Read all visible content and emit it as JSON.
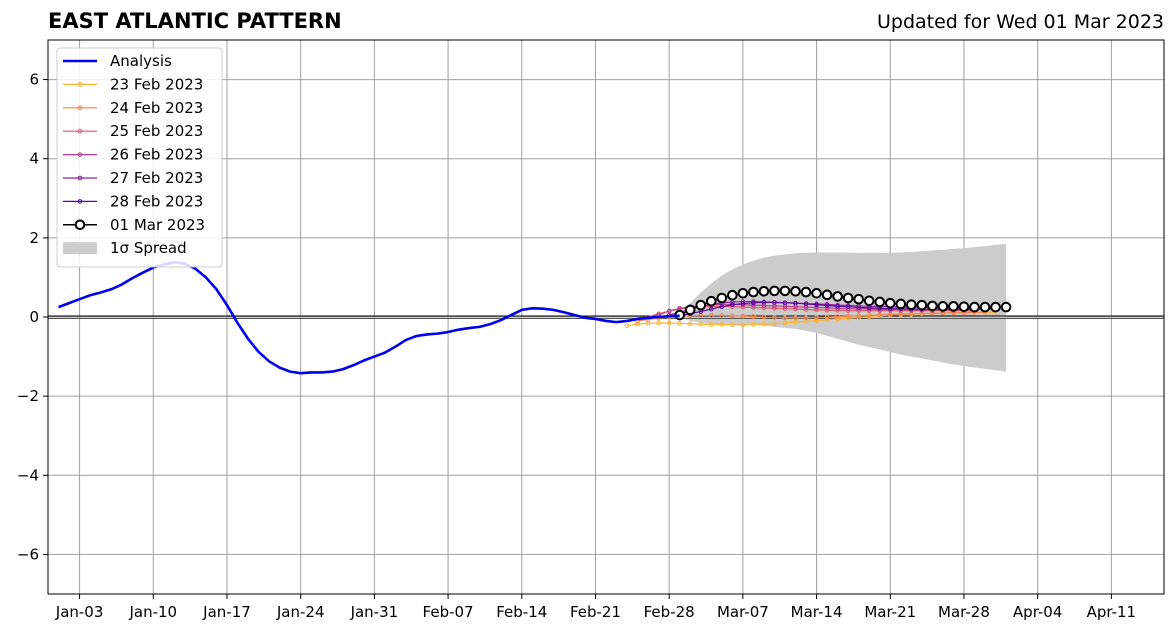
{
  "header": {
    "title": "EAST ATLANTIC PATTERN",
    "subtitle": "Updated for Wed 01 Mar 2023"
  },
  "chart_data": {
    "type": "line",
    "title": "EAST ATLANTIC PATTERN",
    "xlabel": "",
    "ylabel": "",
    "x_tick_labels": [
      "Jan-03",
      "Jan-10",
      "Jan-17",
      "Jan-24",
      "Jan-31",
      "Feb-07",
      "Feb-14",
      "Feb-21",
      "Feb-28",
      "Mar-07",
      "Mar-14",
      "Mar-21",
      "Mar-28",
      "Apr-04",
      "Apr-11"
    ],
    "x_tick_dates": [
      "2023-01-03",
      "2023-01-10",
      "2023-01-17",
      "2023-01-24",
      "2023-01-31",
      "2023-02-07",
      "2023-02-14",
      "2023-02-21",
      "2023-02-28",
      "2023-03-07",
      "2023-03-14",
      "2023-03-21",
      "2023-03-28",
      "2023-04-04",
      "2023-04-11"
    ],
    "x_range": [
      "2022-12-31",
      "2023-04-16"
    ],
    "ylim": [
      -7,
      7
    ],
    "y_ticks": [
      -6,
      -4,
      -2,
      0,
      2,
      4,
      6
    ],
    "y_tick_labels": [
      "−6",
      "−4",
      "−2",
      "0",
      "2",
      "4",
      "6"
    ],
    "grid": true,
    "zero_line": true,
    "legend_position": "top-left",
    "legend": [
      {
        "label": "Analysis",
        "kind": "line"
      },
      {
        "label": "23 Feb 2023",
        "kind": "marker"
      },
      {
        "label": "24 Feb 2023",
        "kind": "marker"
      },
      {
        "label": "25 Feb 2023",
        "kind": "marker"
      },
      {
        "label": "26 Feb 2023",
        "kind": "marker"
      },
      {
        "label": "27 Feb 2023",
        "kind": "marker"
      },
      {
        "label": "28 Feb 2023",
        "kind": "marker"
      },
      {
        "label": "01 Mar 2023",
        "kind": "circle"
      },
      {
        "label": "1σ Spread",
        "kind": "patch"
      }
    ],
    "analysis": {
      "name": "Analysis",
      "color": "#0000ee",
      "dates": [
        "2023-01-01",
        "2023-01-02",
        "2023-01-03",
        "2023-01-04",
        "2023-01-05",
        "2023-01-06",
        "2023-01-07",
        "2023-01-08",
        "2023-01-09",
        "2023-01-10",
        "2023-01-11",
        "2023-01-12",
        "2023-01-13",
        "2023-01-14",
        "2023-01-15",
        "2023-01-16",
        "2023-01-17",
        "2023-01-18",
        "2023-01-19",
        "2023-01-20",
        "2023-01-21",
        "2023-01-22",
        "2023-01-23",
        "2023-01-24",
        "2023-01-25",
        "2023-01-26",
        "2023-01-27",
        "2023-01-28",
        "2023-01-29",
        "2023-01-30",
        "2023-01-31",
        "2023-02-01",
        "2023-02-02",
        "2023-02-03",
        "2023-02-04",
        "2023-02-05",
        "2023-02-06",
        "2023-02-07",
        "2023-02-08",
        "2023-02-09",
        "2023-02-10",
        "2023-02-11",
        "2023-02-12",
        "2023-02-13",
        "2023-02-14",
        "2023-02-15",
        "2023-02-16",
        "2023-02-17",
        "2023-02-18",
        "2023-02-19",
        "2023-02-20",
        "2023-02-21",
        "2023-02-22",
        "2023-02-23",
        "2023-02-24",
        "2023-02-25",
        "2023-02-26",
        "2023-02-27",
        "2023-02-28",
        "2023-03-01"
      ],
      "values": [
        0.25,
        0.35,
        0.45,
        0.55,
        0.62,
        0.7,
        0.82,
        0.98,
        1.12,
        1.25,
        1.33,
        1.38,
        1.35,
        1.22,
        1.0,
        0.7,
        0.3,
        -0.15,
        -0.55,
        -0.88,
        -1.12,
        -1.28,
        -1.38,
        -1.42,
        -1.4,
        -1.4,
        -1.38,
        -1.32,
        -1.22,
        -1.1,
        -1.0,
        -0.9,
        -0.75,
        -0.58,
        -0.48,
        -0.44,
        -0.42,
        -0.38,
        -0.32,
        -0.28,
        -0.25,
        -0.18,
        -0.08,
        0.05,
        0.18,
        0.22,
        0.21,
        0.18,
        0.12,
        0.05,
        -0.02,
        -0.05,
        -0.1,
        -0.13,
        -0.1,
        -0.05,
        -0.02,
        0.0,
        0.02,
        0.03
      ]
    },
    "spread": {
      "name": "1σ Spread",
      "color": "#cccccc",
      "dates": [
        "2023-03-01",
        "2023-03-02",
        "2023-03-03",
        "2023-03-04",
        "2023-03-05",
        "2023-03-06",
        "2023-03-07",
        "2023-03-08",
        "2023-03-09",
        "2023-03-10",
        "2023-03-12",
        "2023-03-14",
        "2023-03-16",
        "2023-03-18",
        "2023-03-20",
        "2023-03-22",
        "2023-03-24",
        "2023-03-26",
        "2023-03-28",
        "2023-03-30",
        "2023-04-01"
      ],
      "upper": [
        0.05,
        0.35,
        0.62,
        0.85,
        1.05,
        1.2,
        1.33,
        1.42,
        1.5,
        1.55,
        1.61,
        1.63,
        1.63,
        1.62,
        1.62,
        1.63,
        1.66,
        1.7,
        1.74,
        1.79,
        1.85
      ],
      "lower": [
        0.0,
        -0.1,
        -0.15,
        -0.18,
        -0.2,
        -0.2,
        -0.2,
        -0.2,
        -0.22,
        -0.25,
        -0.3,
        -0.4,
        -0.55,
        -0.7,
        -0.82,
        -0.95,
        -1.05,
        -1.15,
        -1.24,
        -1.31,
        -1.38
      ]
    },
    "forecasts": [
      {
        "name": "23 Feb 2023",
        "color": "#fdb42f",
        "start": "2023-02-24",
        "end": "2023-03-31",
        "values": [
          -0.22,
          -0.18,
          -0.16,
          -0.15,
          -0.15,
          -0.16,
          -0.17,
          -0.18,
          -0.19,
          -0.19,
          -0.2,
          -0.2,
          -0.19,
          -0.18,
          -0.17,
          -0.15,
          -0.13,
          -0.11,
          -0.09,
          -0.07,
          -0.05,
          -0.03,
          -0.01,
          0.01,
          0.03,
          0.05,
          0.06,
          0.07,
          0.08,
          0.09,
          0.1,
          0.1,
          0.11,
          0.11,
          0.12,
          0.12
        ]
      },
      {
        "name": "24 Feb 2023",
        "color": "#f1844b",
        "start": "2023-02-25",
        "end": "2023-03-30",
        "values": [
          -0.1,
          -0.06,
          -0.03,
          0.0,
          0.02,
          0.03,
          0.04,
          0.04,
          0.04,
          0.03,
          0.02,
          0.01,
          0.0,
          -0.01,
          -0.02,
          -0.02,
          -0.02,
          -0.01,
          0.0,
          0.01,
          0.02,
          0.03,
          0.04,
          0.05,
          0.06,
          0.07,
          0.08,
          0.09,
          0.1,
          0.1,
          0.11,
          0.11,
          0.12,
          0.12
        ]
      },
      {
        "name": "25 Feb 2023",
        "color": "#da5a6a",
        "start": "2023-02-26",
        "end": "2023-03-29",
        "values": [
          0.0,
          0.08,
          0.15,
          0.2,
          0.24,
          0.26,
          0.27,
          0.27,
          0.26,
          0.25,
          0.24,
          0.23,
          0.22,
          0.21,
          0.2,
          0.19,
          0.18,
          0.17,
          0.17,
          0.16,
          0.16,
          0.16,
          0.16,
          0.16,
          0.16,
          0.16,
          0.16,
          0.16,
          0.16,
          0.16,
          0.16,
          0.16
        ]
      },
      {
        "name": "26 Feb 2023",
        "color": "#b93f8e",
        "start": "2023-02-27",
        "end": "2023-03-29",
        "values": [
          0.05,
          0.15,
          0.22,
          0.26,
          0.29,
          0.31,
          0.32,
          0.32,
          0.31,
          0.3,
          0.29,
          0.28,
          0.27,
          0.26,
          0.25,
          0.24,
          0.23,
          0.22,
          0.21,
          0.2,
          0.2,
          0.19,
          0.19,
          0.19,
          0.18,
          0.18,
          0.18,
          0.18,
          0.18,
          0.18,
          0.18
        ]
      },
      {
        "name": "27 Feb 2023",
        "color": "#8f1da6",
        "start": "2023-02-28",
        "end": "2023-03-30",
        "values": [
          0.05,
          0.12,
          0.2,
          0.27,
          0.32,
          0.36,
          0.38,
          0.39,
          0.39,
          0.38,
          0.37,
          0.36,
          0.35,
          0.34,
          0.33,
          0.32,
          0.3,
          0.29,
          0.28,
          0.27,
          0.26,
          0.26,
          0.25,
          0.25,
          0.25,
          0.24,
          0.24,
          0.24,
          0.24,
          0.24,
          0.24
        ]
      },
      {
        "name": "28 Feb 2023",
        "color": "#5a06a0",
        "start": "2023-03-01",
        "end": "2023-03-31",
        "values": [
          0.03,
          0.08,
          0.14,
          0.2,
          0.26,
          0.31,
          0.34,
          0.36,
          0.37,
          0.37,
          0.36,
          0.35,
          0.33,
          0.31,
          0.29,
          0.27,
          0.26,
          0.24,
          0.23,
          0.22,
          0.21,
          0.21,
          0.2,
          0.2,
          0.2,
          0.2,
          0.2,
          0.2,
          0.2,
          0.2,
          0.2
        ]
      },
      {
        "name": "01 Mar 2023",
        "color": "#000000",
        "start": "2023-03-01",
        "end": "2023-04-01",
        "values": [
          0.05,
          0.18,
          0.3,
          0.4,
          0.48,
          0.55,
          0.6,
          0.63,
          0.65,
          0.66,
          0.66,
          0.65,
          0.63,
          0.6,
          0.56,
          0.52,
          0.48,
          0.45,
          0.41,
          0.38,
          0.35,
          0.33,
          0.31,
          0.3,
          0.28,
          0.27,
          0.27,
          0.26,
          0.25,
          0.25,
          0.25,
          0.25
        ]
      }
    ]
  }
}
